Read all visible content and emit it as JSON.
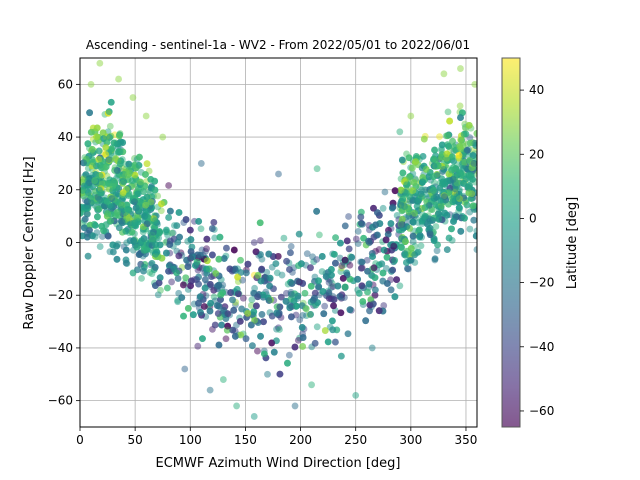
{
  "chart_data": {
    "type": "scatter",
    "title": "Ascending - sentinel-1a - WV2 - From 2022/05/01 to 2022/06/01",
    "xlabel": "ECMWF Azimuth Wind Direction [deg]",
    "ylabel": "Raw Doppler Centroid [Hz]",
    "xlim": [
      0,
      360
    ],
    "ylim": [
      -70,
      70
    ],
    "xticks": [
      0,
      50,
      100,
      150,
      200,
      250,
      300,
      350
    ],
    "yticks": [
      -60,
      -40,
      -20,
      0,
      20,
      40,
      60
    ],
    "grid": true,
    "point_alpha": 0.5,
    "colormap": "viridis",
    "colormap_stops": [
      "#440154",
      "#482878",
      "#3e4989",
      "#31688e",
      "#26828e",
      "#1f9e89",
      "#35b779",
      "#6ece58",
      "#b5de2b",
      "#fde725"
    ],
    "colorbar": {
      "label": "Latitude [deg]",
      "range": [
        -65,
        50
      ],
      "ticks": [
        -60,
        -40,
        -20,
        0,
        20,
        40
      ]
    },
    "trend": {
      "description_values": [
        [
          0,
          22
        ],
        [
          25,
          24
        ],
        [
          50,
          12
        ],
        [
          75,
          0
        ],
        [
          100,
          -10
        ],
        [
          125,
          -18
        ],
        [
          150,
          -22
        ],
        [
          175,
          -22
        ],
        [
          200,
          -20
        ],
        [
          225,
          -16
        ],
        [
          250,
          -10
        ],
        [
          275,
          0
        ],
        [
          300,
          12
        ],
        [
          325,
          22
        ],
        [
          350,
          26
        ],
        [
          360,
          24
        ]
      ]
    },
    "sample_points": [
      [
        10,
        60
      ],
      [
        18,
        68
      ],
      [
        35,
        62
      ],
      [
        48,
        55
      ],
      [
        330,
        64
      ],
      [
        345,
        66
      ],
      [
        358,
        60
      ],
      [
        142,
        -62
      ],
      [
        158,
        -66
      ],
      [
        195,
        -62
      ],
      [
        118,
        -56
      ],
      [
        250,
        -58
      ],
      [
        95,
        -48
      ],
      [
        130,
        -52
      ],
      [
        170,
        -50
      ],
      [
        210,
        -54
      ],
      [
        265,
        -40
      ],
      [
        60,
        48
      ],
      [
        75,
        40
      ],
      [
        300,
        48
      ],
      [
        290,
        42
      ],
      [
        110,
        30
      ],
      [
        180,
        26
      ],
      [
        215,
        28
      ]
    ]
  }
}
